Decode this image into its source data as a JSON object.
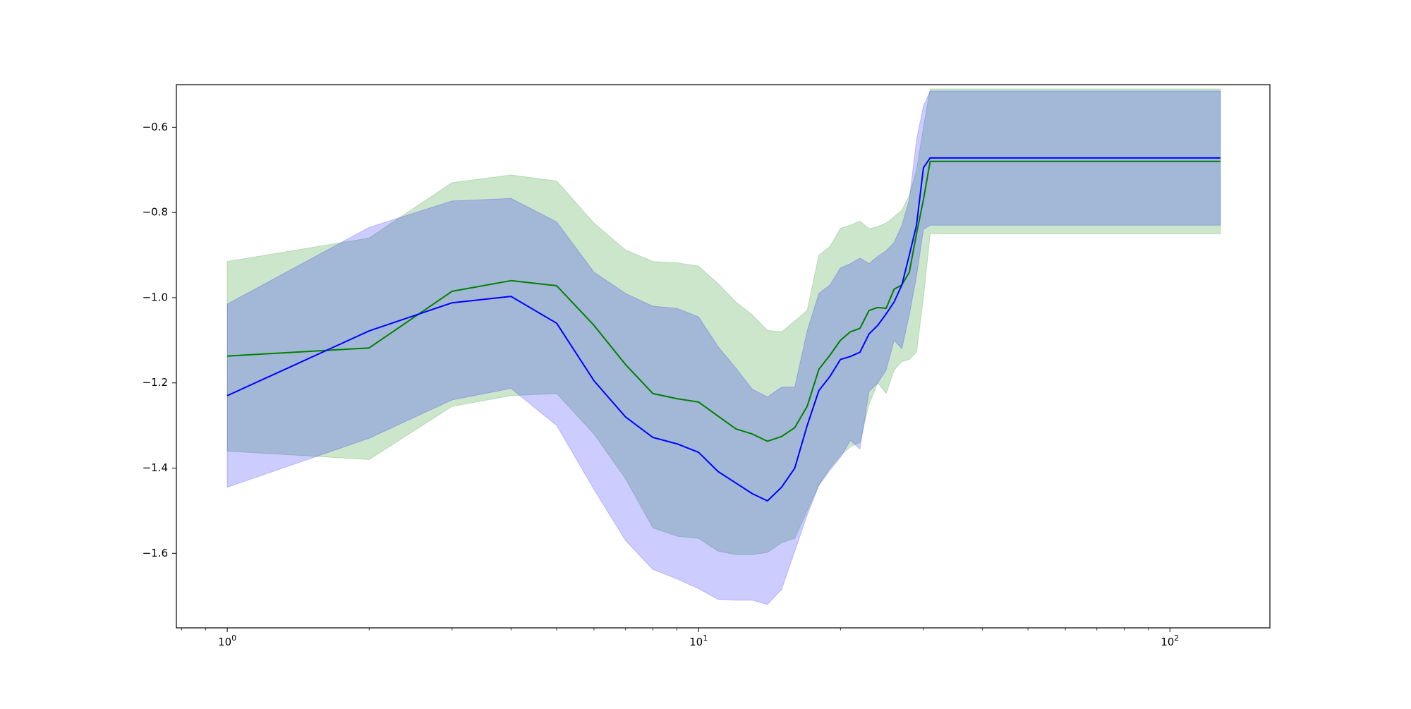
{
  "chart_data": {
    "type": "line",
    "title": "",
    "xlabel": "",
    "ylabel": "",
    "xscale": "log",
    "xlim": [
      0.78,
      163
    ],
    "ylim": [
      -1.775,
      -0.5
    ],
    "grid": false,
    "legend": "none",
    "xticks": [
      {
        "value": 1,
        "base": "10",
        "exp": "0"
      },
      {
        "value": 10,
        "base": "10",
        "exp": "1"
      },
      {
        "value": 100,
        "base": "10",
        "exp": "2"
      }
    ],
    "yticks": [
      {
        "value": -0.6,
        "label": "−0.6"
      },
      {
        "value": -0.8,
        "label": "−0.8"
      },
      {
        "value": -1.0,
        "label": "−1.0"
      },
      {
        "value": -1.2,
        "label": "−1.2"
      },
      {
        "value": -1.4,
        "label": "−1.4"
      },
      {
        "value": -1.6,
        "label": "−1.6"
      }
    ],
    "series": [
      {
        "color": "#008000",
        "band_color": "#008000",
        "band_opacity": 0.2,
        "x": [
          1,
          2,
          3,
          4,
          5,
          6,
          7,
          8,
          9,
          10,
          11,
          12,
          13,
          14,
          15,
          16,
          17,
          18,
          19,
          20,
          21,
          22,
          23,
          24,
          25,
          26,
          27,
          28,
          29,
          30,
          31,
          128
        ],
        "mean": [
          -1.137,
          -1.118,
          -0.985,
          -0.96,
          -0.972,
          -1.065,
          -1.157,
          -1.225,
          -1.237,
          -1.245,
          -1.278,
          -1.308,
          -1.32,
          -1.337,
          -1.326,
          -1.305,
          -1.255,
          -1.168,
          -1.135,
          -1.1,
          -1.08,
          -1.072,
          -1.03,
          -1.023,
          -1.025,
          -0.98,
          -0.97,
          -0.94,
          -0.85,
          -0.77,
          -0.68,
          -0.68
        ],
        "upper": [
          -0.915,
          -0.86,
          -0.73,
          -0.712,
          -0.726,
          -0.825,
          -0.888,
          -0.915,
          -0.918,
          -0.926,
          -0.967,
          -1.01,
          -1.04,
          -1.077,
          -1.08,
          -1.055,
          -1.03,
          -0.9,
          -0.88,
          -0.837,
          -0.83,
          -0.82,
          -0.838,
          -0.833,
          -0.825,
          -0.81,
          -0.795,
          -0.76,
          -0.7,
          -0.6,
          -0.51,
          -0.51
        ],
        "lower": [
          -1.36,
          -1.38,
          -1.255,
          -1.23,
          -1.225,
          -1.32,
          -1.425,
          -1.54,
          -1.56,
          -1.565,
          -1.595,
          -1.603,
          -1.603,
          -1.598,
          -1.575,
          -1.565,
          -1.5,
          -1.44,
          -1.4,
          -1.37,
          -1.35,
          -1.34,
          -1.25,
          -1.2,
          -1.225,
          -1.17,
          -1.15,
          -1.145,
          -1.128,
          -1.0,
          -0.85,
          -0.85
        ]
      },
      {
        "color": "#0000ff",
        "band_color": "#0000ff",
        "band_opacity": 0.2,
        "x": [
          1,
          2,
          3,
          4,
          5,
          6,
          7,
          8,
          9,
          10,
          11,
          12,
          13,
          14,
          15,
          16,
          17,
          18,
          19,
          20,
          21,
          22,
          23,
          24,
          25,
          26,
          27,
          28,
          29,
          30,
          31,
          128
        ],
        "mean": [
          -1.23,
          -1.078,
          -1.012,
          -0.997,
          -1.06,
          -1.195,
          -1.28,
          -1.328,
          -1.343,
          -1.363,
          -1.408,
          -1.435,
          -1.46,
          -1.477,
          -1.445,
          -1.4,
          -1.3,
          -1.218,
          -1.185,
          -1.145,
          -1.138,
          -1.128,
          -1.085,
          -1.065,
          -1.038,
          -1.01,
          -0.97,
          -0.9,
          -0.83,
          -0.695,
          -0.672,
          -0.672
        ],
        "upper": [
          -1.015,
          -0.835,
          -0.773,
          -0.767,
          -0.822,
          -0.94,
          -0.99,
          -1.02,
          -1.025,
          -1.045,
          -1.115,
          -1.165,
          -1.215,
          -1.233,
          -1.21,
          -1.21,
          -1.078,
          -0.99,
          -0.97,
          -0.93,
          -0.92,
          -0.907,
          -0.92,
          -0.903,
          -0.89,
          -0.87,
          -0.83,
          -0.77,
          -0.63,
          -0.55,
          -0.515,
          -0.515
        ],
        "lower": [
          -1.445,
          -1.33,
          -1.24,
          -1.213,
          -1.3,
          -1.45,
          -1.57,
          -1.638,
          -1.66,
          -1.683,
          -1.708,
          -1.71,
          -1.71,
          -1.72,
          -1.685,
          -1.595,
          -1.51,
          -1.44,
          -1.405,
          -1.375,
          -1.335,
          -1.355,
          -1.22,
          -1.2,
          -1.17,
          -1.1,
          -1.12,
          -1.04,
          -0.95,
          -0.84,
          -0.83,
          -0.83
        ]
      }
    ]
  }
}
